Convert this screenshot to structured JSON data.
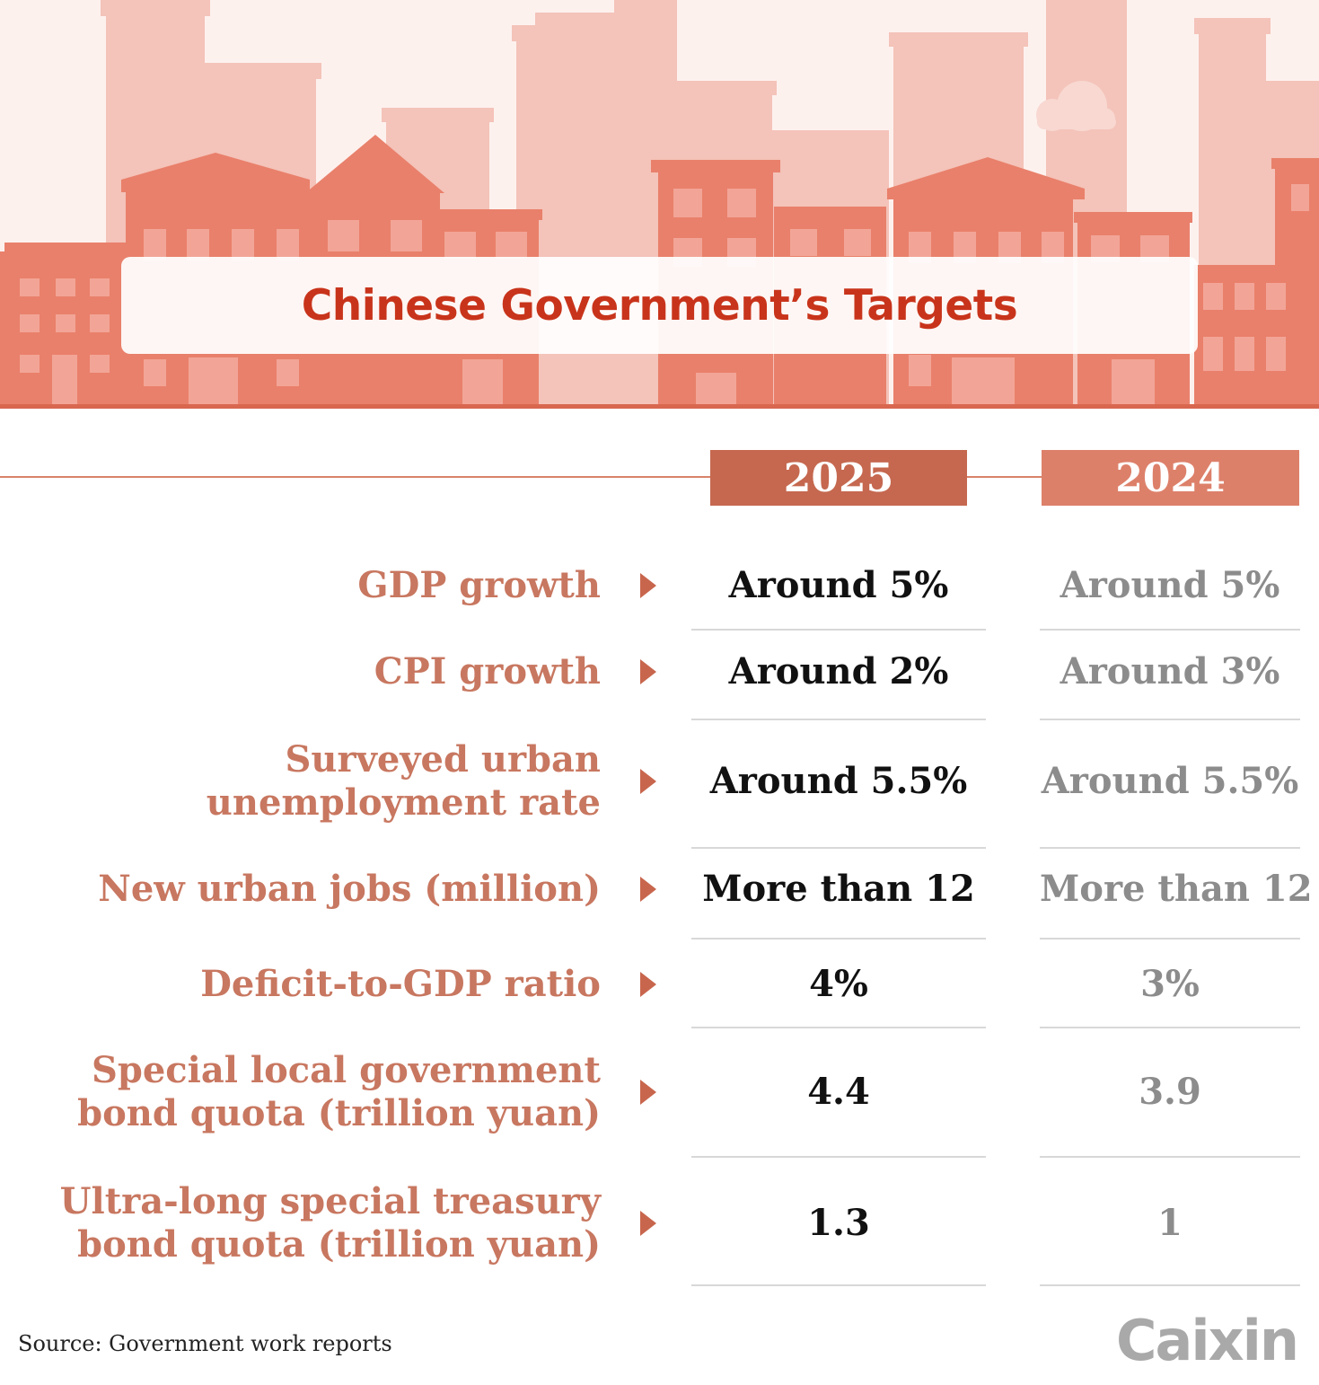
{
  "title": "Chinese Government’s Targets",
  "source": "Source: Government work reports",
  "logo": "Caixin",
  "colors": {
    "title": "#c8341b",
    "label": "#c87760",
    "header_2025": "#c5684f",
    "header_2024": "#dd806a",
    "value_2025": "#111111",
    "value_2024": "#8c8c8c"
  },
  "chart_data": {
    "type": "table",
    "title": "Chinese Government’s Targets",
    "columns": [
      "2025",
      "2024"
    ],
    "rows": [
      {
        "label": [
          "GDP growth"
        ],
        "y2025": "Around 5%",
        "y2024": "Around 5%"
      },
      {
        "label": [
          "CPI growth"
        ],
        "y2025": "Around 2%",
        "y2024": "Around 3%"
      },
      {
        "label": [
          "Surveyed urban",
          "unemployment rate"
        ],
        "y2025": "Around 5.5%",
        "y2024": "Around 5.5%"
      },
      {
        "label": [
          "New urban jobs (million)"
        ],
        "y2025": "More than 12",
        "y2024": "More than 12"
      },
      {
        "label": [
          "Deficit-to-GDP ratio"
        ],
        "y2025": "4%",
        "y2024": "3%"
      },
      {
        "label": [
          "Special local government",
          "bond quota (trillion yuan)"
        ],
        "y2025": "4.4",
        "y2024": "3.9"
      },
      {
        "label": [
          "Ultra-long special treasury",
          "bond quota (trillion yuan)"
        ],
        "y2025": "1.3",
        "y2024": "1"
      }
    ]
  }
}
